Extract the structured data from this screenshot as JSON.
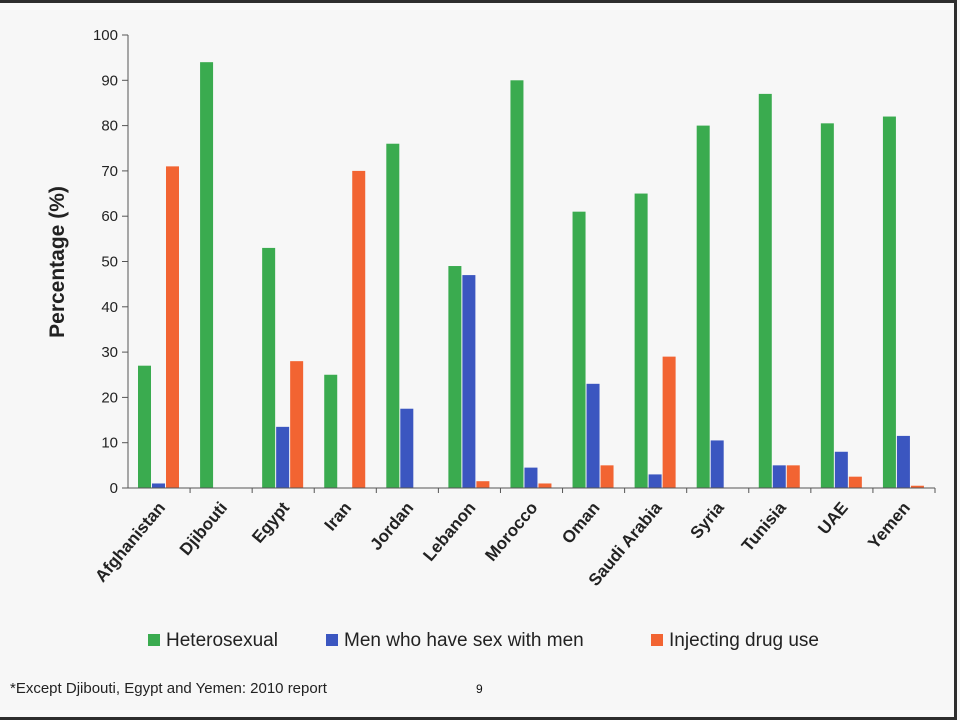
{
  "page": {
    "footnote": "*Except Djibouti, Egypt and Yemen: 2010 report",
    "page_number": "9"
  },
  "colors": {
    "heterosexual": "#3aab4f",
    "msm": "#3b56c0",
    "idu": "#f26432",
    "axis": "#555555",
    "frame": "#2c2c2c"
  },
  "chart_data": {
    "type": "bar",
    "title": "",
    "xlabel": "",
    "ylabel": "Percentage (%)",
    "ylim": [
      0,
      100
    ],
    "yticks": [
      0,
      10,
      20,
      30,
      40,
      50,
      60,
      70,
      80,
      90,
      100
    ],
    "categories": [
      "Afghanistan",
      "Djibouti",
      "Egypt",
      "Iran",
      "Jordan",
      "Lebanon",
      "Morocco",
      "Oman",
      "Saudi Arabia",
      "Syria",
      "Tunisia",
      "UAE",
      "Yemen"
    ],
    "series": [
      {
        "name": "Heterosexual",
        "color_key": "heterosexual",
        "values": [
          27,
          94,
          53,
          25,
          76,
          49,
          90,
          61,
          65,
          80,
          87,
          80.5,
          82
        ]
      },
      {
        "name": "Men who have sex with men",
        "color_key": "msm",
        "values": [
          1,
          0,
          13.5,
          0,
          17.5,
          47,
          4.5,
          23,
          3,
          10.5,
          5,
          8,
          11.5
        ]
      },
      {
        "name": "Injecting drug use",
        "color_key": "idu",
        "values": [
          71,
          0,
          28,
          70,
          0,
          1.5,
          1,
          5,
          29,
          0,
          5,
          2.5,
          0.5
        ]
      }
    ],
    "grid": false,
    "legend": "bottom"
  }
}
